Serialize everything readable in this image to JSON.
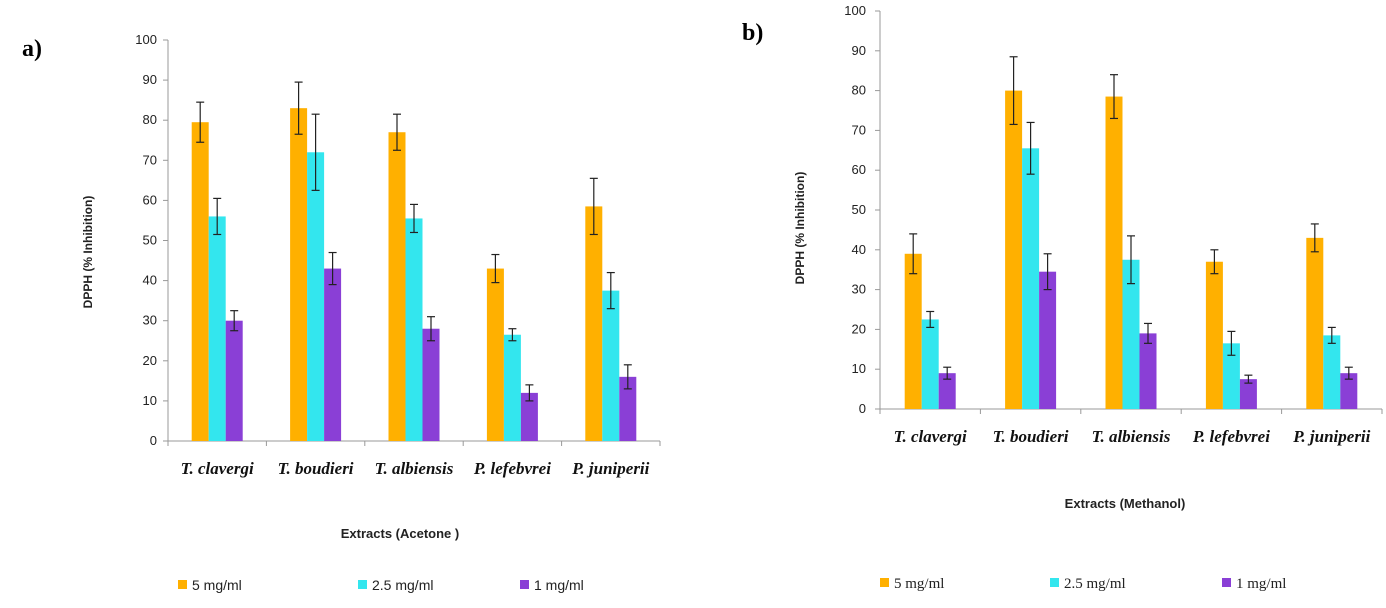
{
  "chart_data": [
    {
      "type": "bar",
      "panel_label": "a)",
      "title": "",
      "xlabel": "Extracts (Acetone )",
      "ylabel": "DPPH (% Inhibition)",
      "ylim": [
        0,
        100
      ],
      "yticks": [
        0,
        10,
        20,
        30,
        40,
        50,
        60,
        70,
        80,
        90,
        100
      ],
      "categories": [
        "T. clavergi",
        "T. boudieri",
        "T. albiensis",
        "P. lefebvrei",
        "P. juniperii"
      ],
      "series": [
        {
          "name": "5 mg/ml",
          "color": "#ffb000",
          "values": [
            79.5,
            83,
            77,
            43,
            58.5
          ],
          "errors": [
            5,
            6.5,
            4.5,
            3.5,
            7
          ]
        },
        {
          "name": "2.5 mg/ml",
          "color": "#33e6ee",
          "values": [
            56,
            72,
            55.5,
            26.5,
            37.5
          ],
          "errors": [
            4.5,
            9.5,
            3.5,
            1.5,
            4.5
          ]
        },
        {
          "name": "1 mg/ml",
          "color": "#8a3fd6",
          "values": [
            30,
            43,
            28,
            12,
            16
          ],
          "errors": [
            2.5,
            4,
            3,
            2,
            3
          ]
        }
      ]
    },
    {
      "type": "bar",
      "panel_label": "b)",
      "title": "",
      "xlabel": "Extracts (Methanol)",
      "ylabel": "DPPH (% Inhibition)",
      "ylim": [
        0,
        100
      ],
      "yticks": [
        0,
        10,
        20,
        30,
        40,
        50,
        60,
        70,
        80,
        90,
        100
      ],
      "categories": [
        "T. clavergi",
        "T. boudieri",
        "T. albiensis",
        "P. lefebvrei",
        "P. juniperii"
      ],
      "series": [
        {
          "name": "5 mg/ml",
          "color": "#ffb000",
          "values": [
            39,
            80,
            78.5,
            37,
            43
          ],
          "errors": [
            5,
            8.5,
            5.5,
            3,
            3.5
          ]
        },
        {
          "name": "2.5 mg/ml",
          "color": "#33e6ee",
          "values": [
            22.5,
            65.5,
            37.5,
            16.5,
            18.5
          ],
          "errors": [
            2,
            6.5,
            6,
            3,
            2
          ]
        },
        {
          "name": "1 mg/ml",
          "color": "#8a3fd6",
          "values": [
            9,
            34.5,
            19,
            7.5,
            9
          ],
          "errors": [
            1.5,
            4.5,
            2.5,
            1,
            1.5
          ]
        }
      ]
    }
  ]
}
